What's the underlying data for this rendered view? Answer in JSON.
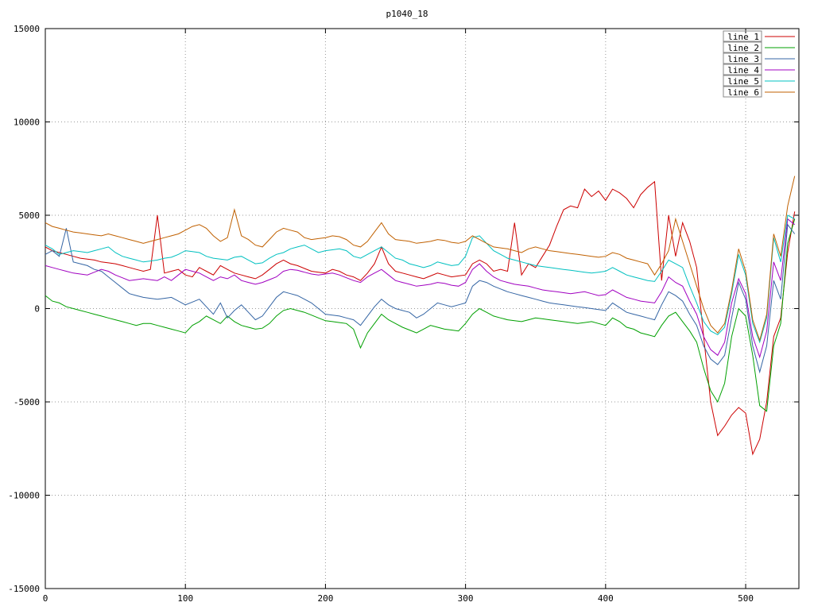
{
  "chart_data": {
    "type": "line",
    "title": "p1040_18",
    "xlabel": "",
    "ylabel": "",
    "xlim": [
      0,
      538
    ],
    "ylim": [
      -15000,
      15000
    ],
    "xticks": [
      0,
      100,
      200,
      300,
      400,
      500
    ],
    "yticks": [
      -15000,
      -10000,
      -5000,
      0,
      5000,
      10000,
      15000
    ],
    "grid": "dotted",
    "legend_position": "top-right",
    "x_start": 0,
    "x_step": 5,
    "series": [
      {
        "name": "line 1",
        "color": "#cc0000",
        "values": [
          3300,
          3100,
          3000,
          2900,
          2800,
          2700,
          2650,
          2600,
          2500,
          2450,
          2400,
          2300,
          2200,
          2100,
          2000,
          2100,
          5000,
          1900,
          2000,
          2100,
          1800,
          1700,
          2200,
          2000,
          1800,
          2300,
          2100,
          1900,
          1800,
          1700,
          1600,
          1800,
          2100,
          2400,
          2600,
          2400,
          2300,
          2150,
          2000,
          1950,
          1900,
          2100,
          2000,
          1800,
          1700,
          1500,
          1900,
          2400,
          3300,
          2400,
          2000,
          1900,
          1800,
          1700,
          1600,
          1750,
          1900,
          1800,
          1700,
          1750,
          1800,
          2400,
          2600,
          2400,
          2000,
          2100,
          2000,
          4600,
          1800,
          2400,
          2200,
          2800,
          3400,
          4400,
          5300,
          5500,
          5400,
          6400,
          6000,
          6300,
          5800,
          6400,
          6200,
          5900,
          5400,
          6100,
          6500,
          6800,
          1500,
          5000,
          2800,
          4600,
          3600,
          2200,
          -1500,
          -5000,
          -6800,
          -6300,
          -5700,
          -5300,
          -5600,
          -7800,
          -7000,
          -5000,
          -1500,
          -500,
          3000,
          5200
        ]
      },
      {
        "name": "line 2",
        "color": "#00a000",
        "values": [
          700,
          400,
          300,
          100,
          0,
          -100,
          -200,
          -300,
          -400,
          -500,
          -600,
          -700,
          -800,
          -900,
          -800,
          -800,
          -900,
          -1000,
          -1100,
          -1200,
          -1300,
          -900,
          -700,
          -400,
          -600,
          -800,
          -400,
          -700,
          -900,
          -1000,
          -1100,
          -1050,
          -800,
          -400,
          -100,
          0,
          -100,
          -200,
          -350,
          -500,
          -650,
          -700,
          -750,
          -800,
          -1100,
          -2100,
          -1300,
          -800,
          -300,
          -600,
          -800,
          -1000,
          -1150,
          -1300,
          -1100,
          -900,
          -1000,
          -1100,
          -1150,
          -1200,
          -800,
          -300,
          0,
          -200,
          -400,
          -500,
          -600,
          -650,
          -700,
          -600,
          -500,
          -550,
          -600,
          -650,
          -700,
          -750,
          -800,
          -750,
          -700,
          -800,
          -900,
          -500,
          -700,
          -1000,
          -1100,
          -1300,
          -1400,
          -1500,
          -900,
          -400,
          -200,
          -700,
          -1200,
          -1800,
          -3200,
          -4400,
          -5000,
          -4000,
          -1500,
          0,
          -400,
          -2500,
          -5200,
          -5500,
          -2000,
          -800,
          3500,
          4800
        ]
      },
      {
        "name": "line 3",
        "color": "#3465a4",
        "values": [
          2900,
          3100,
          2800,
          4300,
          2500,
          2400,
          2300,
          2100,
          2000,
          1700,
          1400,
          1100,
          800,
          700,
          600,
          550,
          500,
          550,
          600,
          400,
          200,
          350,
          500,
          100,
          -300,
          300,
          -500,
          -100,
          200,
          -200,
          -600,
          -400,
          100,
          600,
          900,
          800,
          700,
          500,
          300,
          0,
          -300,
          -350,
          -400,
          -500,
          -600,
          -900,
          -400,
          100,
          500,
          200,
          0,
          -100,
          -200,
          -500,
          -300,
          0,
          300,
          200,
          100,
          200,
          300,
          1200,
          1500,
          1400,
          1200,
          1050,
          900,
          800,
          700,
          600,
          500,
          400,
          300,
          250,
          200,
          150,
          100,
          50,
          0,
          -50,
          -100,
          300,
          50,
          -200,
          -300,
          -400,
          -500,
          -600,
          200,
          900,
          700,
          400,
          -300,
          -900,
          -2000,
          -2700,
          -3000,
          -2500,
          -500,
          1400,
          500,
          -2000,
          -3400,
          -2000,
          1500,
          500,
          4500,
          4000
        ]
      },
      {
        "name": "line 4",
        "color": "#a000c0",
        "values": [
          2300,
          2200,
          2100,
          2000,
          1900,
          1850,
          1800,
          1950,
          2100,
          2000,
          1800,
          1650,
          1500,
          1550,
          1600,
          1550,
          1500,
          1700,
          1500,
          1800,
          2100,
          2000,
          1900,
          1700,
          1500,
          1700,
          1600,
          1800,
          1500,
          1400,
          1300,
          1400,
          1550,
          1700,
          2000,
          2100,
          2050,
          1950,
          1850,
          1800,
          1850,
          1900,
          1800,
          1650,
          1500,
          1400,
          1700,
          1900,
          2100,
          1800,
          1500,
          1400,
          1300,
          1200,
          1250,
          1300,
          1400,
          1350,
          1250,
          1200,
          1400,
          2100,
          2400,
          2000,
          1700,
          1500,
          1400,
          1300,
          1250,
          1200,
          1100,
          1000,
          950,
          900,
          850,
          800,
          850,
          900,
          800,
          700,
          750,
          1000,
          800,
          600,
          500,
          400,
          350,
          300,
          900,
          1700,
          1400,
          1200,
          400,
          -300,
          -1500,
          -2200,
          -2500,
          -1800,
          300,
          1600,
          800,
          -1500,
          -2600,
          -1200,
          2500,
          1500,
          4800,
          4500
        ]
      },
      {
        "name": "line 5",
        "color": "#00c0c0",
        "values": [
          3400,
          3200,
          2900,
          3000,
          3100,
          3050,
          3000,
          3100,
          3200,
          3300,
          3000,
          2800,
          2700,
          2600,
          2500,
          2550,
          2600,
          2700,
          2750,
          2900,
          3100,
          3050,
          3000,
          2800,
          2700,
          2650,
          2600,
          2750,
          2800,
          2600,
          2400,
          2450,
          2700,
          2900,
          3000,
          3200,
          3300,
          3400,
          3200,
          3000,
          3100,
          3150,
          3200,
          3100,
          2800,
          2700,
          2900,
          3100,
          3300,
          3000,
          2700,
          2600,
          2400,
          2300,
          2200,
          2300,
          2500,
          2400,
          2300,
          2350,
          2800,
          3800,
          3900,
          3500,
          3100,
          2900,
          2700,
          2600,
          2500,
          2400,
          2300,
          2250,
          2200,
          2150,
          2100,
          2050,
          2000,
          1950,
          1900,
          1950,
          2000,
          2200,
          2000,
          1800,
          1700,
          1600,
          1500,
          1450,
          2000,
          2600,
          2400,
          2200,
          1200,
          300,
          -700,
          -1200,
          -1400,
          -1000,
          800,
          2900,
          1800,
          -800,
          -1800,
          -500,
          3800,
          2500,
          5000,
          4800
        ]
      },
      {
        "name": "line 6",
        "color": "#c06000",
        "values": [
          4600,
          4400,
          4300,
          4200,
          4100,
          4050,
          4000,
          3950,
          3900,
          4000,
          3900,
          3800,
          3700,
          3600,
          3500,
          3600,
          3700,
          3800,
          3900,
          4000,
          4200,
          4400,
          4500,
          4300,
          3900,
          3600,
          3800,
          5300,
          3900,
          3700,
          3400,
          3300,
          3700,
          4100,
          4300,
          4200,
          4100,
          3800,
          3700,
          3750,
          3800,
          3900,
          3850,
          3700,
          3400,
          3300,
          3600,
          4100,
          4600,
          4000,
          3700,
          3650,
          3600,
          3500,
          3550,
          3600,
          3700,
          3650,
          3550,
          3500,
          3600,
          3900,
          3700,
          3500,
          3300,
          3250,
          3200,
          3100,
          3000,
          3200,
          3300,
          3200,
          3100,
          3050,
          3000,
          2950,
          2900,
          2850,
          2800,
          2750,
          2800,
          3000,
          2900,
          2700,
          2600,
          2500,
          2400,
          1800,
          2400,
          3100,
          4800,
          3600,
          2400,
          1200,
          0,
          -900,
          -1300,
          -800,
          1000,
          3200,
          2000,
          -600,
          -1700,
          -300,
          4000,
          2800,
          5500,
          7100
        ]
      }
    ]
  }
}
